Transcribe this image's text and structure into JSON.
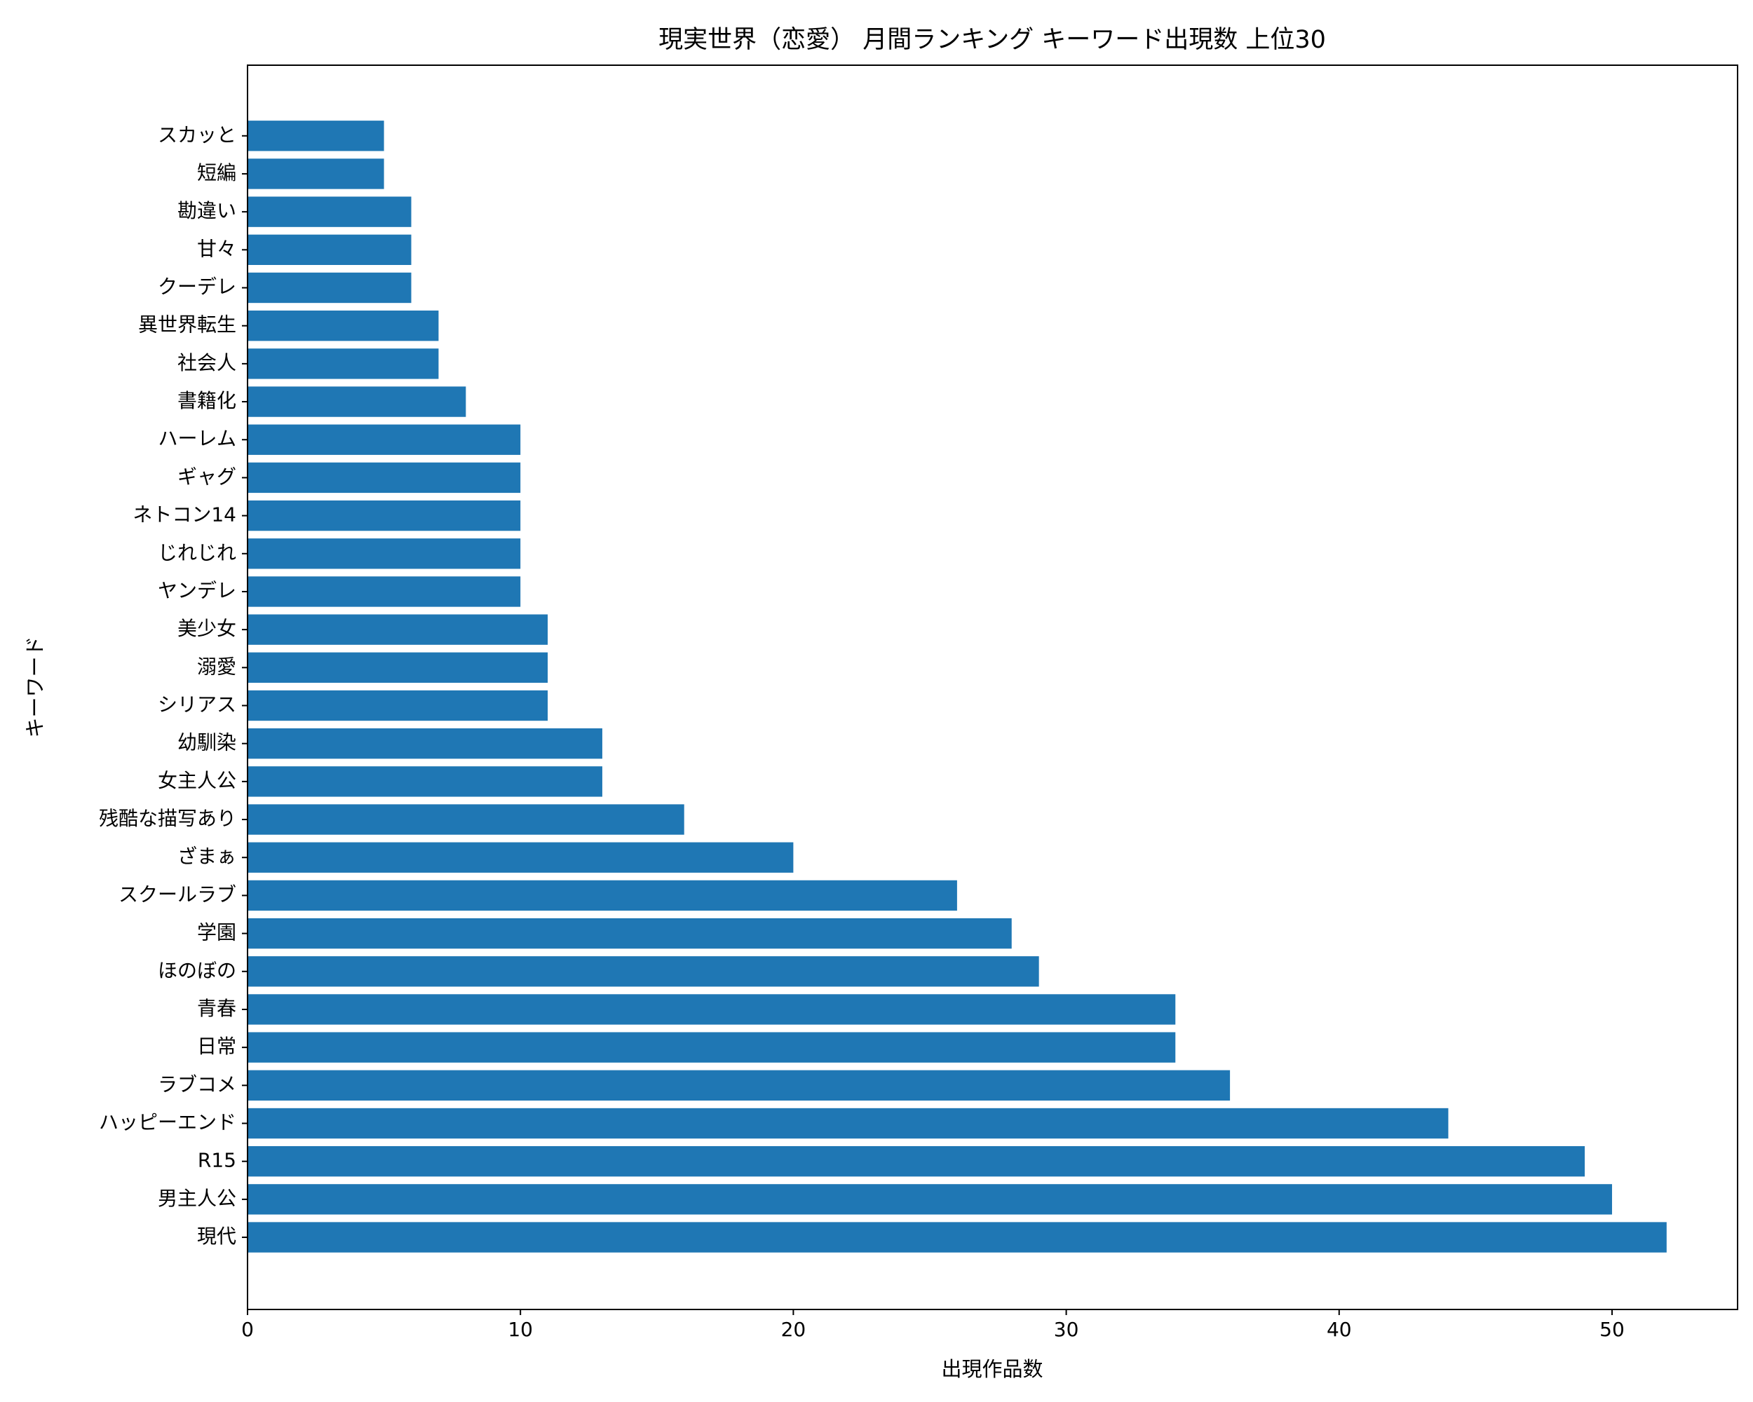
{
  "chart_data": {
    "type": "barh",
    "title": "現実世界（恋愛） 月間ランキング キーワード出現数 上位30",
    "x_label": "出現作品数",
    "y_label": "キーワード",
    "categories": [
      "現代",
      "男主人公",
      "R15",
      "ハッピーエンド",
      "ラブコメ",
      "日常",
      "青春",
      "ほのぼの",
      "学園",
      "スクールラブ",
      "ざまぁ",
      "残酷な描写あり",
      "女主人公",
      "幼馴染",
      "シリアス",
      "溺愛",
      "美少女",
      "ヤンデレ",
      "じれじれ",
      "ネトコン14",
      "ギャグ",
      "ハーレム",
      "書籍化",
      "社会人",
      "異世界転生",
      "クーデレ",
      "甘々",
      "勘違い",
      "短編",
      "スカッと"
    ],
    "values": [
      52,
      50,
      49,
      44,
      36,
      34,
      34,
      29,
      28,
      26,
      20,
      16,
      13,
      13,
      11,
      11,
      11,
      10,
      10,
      10,
      10,
      10,
      8,
      7,
      7,
      6,
      6,
      6,
      5,
      5
    ],
    "color": "#1f77b4",
    "xlim": [
      0,
      54.6
    ],
    "xticks": [
      0,
      10,
      20,
      30,
      40,
      50
    ],
    "grid": false
  }
}
